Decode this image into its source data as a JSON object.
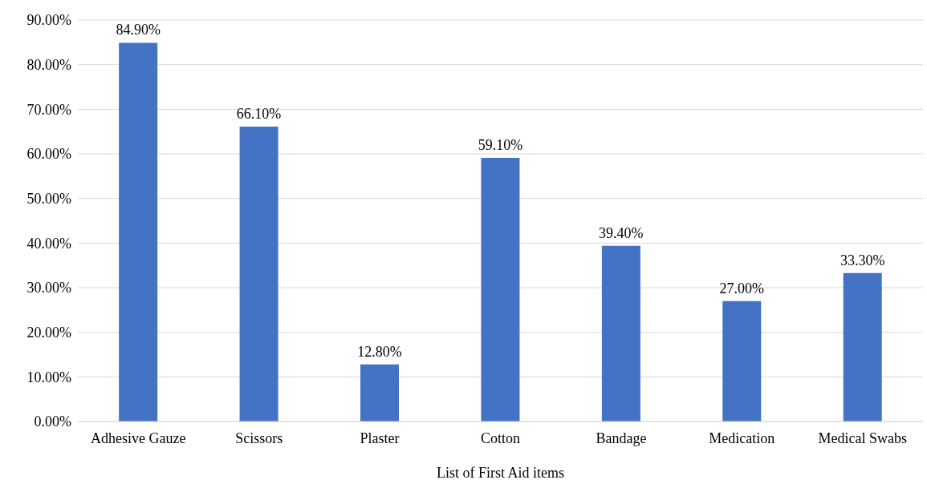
{
  "chart_data": {
    "type": "bar",
    "xlabel": "List of First Aid items",
    "categories": [
      "Adhesive Gauze",
      "Scissors",
      "Plaster",
      "Cotton",
      "Bandage",
      "Medication",
      "Medical Swabs"
    ],
    "values": [
      84.9,
      66.1,
      12.8,
      59.1,
      39.4,
      27.0,
      33.3
    ],
    "value_labels": [
      "84.90%",
      "66.10%",
      "12.80%",
      "59.10%",
      "39.40%",
      "27.00%",
      "33.30%"
    ],
    "color": "#4472c4",
    "ylim": [
      0,
      90
    ],
    "yticks": [
      {
        "value": 0,
        "label": "0.00%"
      },
      {
        "value": 10,
        "label": "10.00%"
      },
      {
        "value": 20,
        "label": "20.00%"
      },
      {
        "value": 30,
        "label": "30.00%"
      },
      {
        "value": 40,
        "label": "40.00%"
      },
      {
        "value": 50,
        "label": "50.00%"
      },
      {
        "value": 60,
        "label": "60.00%"
      },
      {
        "value": 70,
        "label": "70.00%"
      },
      {
        "value": 80,
        "label": "80.00%"
      },
      {
        "value": 90,
        "label": "90.00%"
      }
    ],
    "grid": "y",
    "legend": false
  }
}
